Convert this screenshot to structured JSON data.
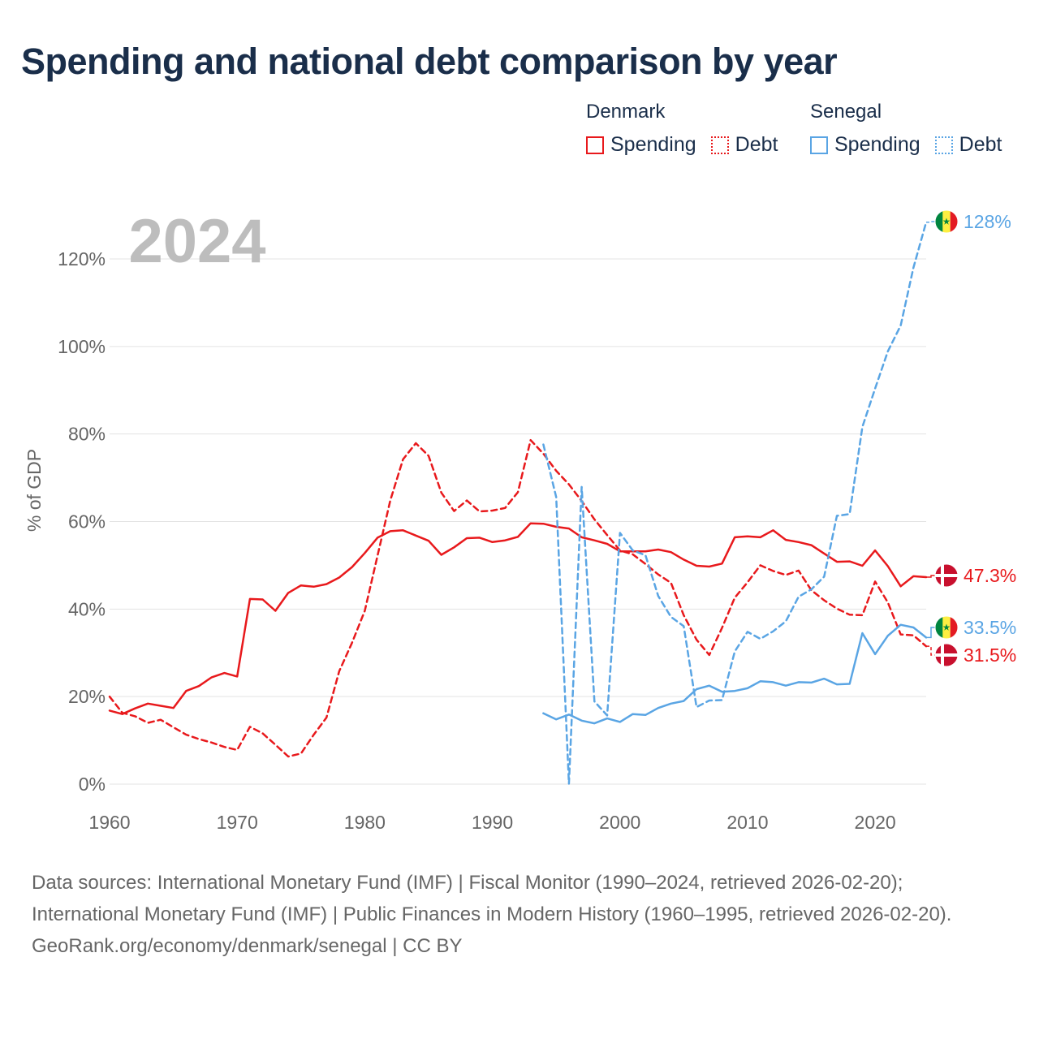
{
  "title": "Spending and national debt comparison by year",
  "legend": [
    {
      "country": "Denmark",
      "color": "#e8191c",
      "items": [
        {
          "label": "Spending",
          "style": "solid"
        },
        {
          "label": "Debt",
          "style": "dotted"
        }
      ]
    },
    {
      "country": "Senegal",
      "color": "#5aa5e4",
      "items": [
        {
          "label": "Spending",
          "style": "solid"
        },
        {
          "label": "Debt",
          "style": "dotted"
        }
      ]
    }
  ],
  "chart_data": {
    "type": "line",
    "title": "Spending and national debt comparison by year",
    "year_label": "2024",
    "ylabel": "% of GDP",
    "xlabel": "",
    "xlim": [
      1960,
      2024
    ],
    "ylim": [
      0,
      130
    ],
    "x_ticks": [
      "1960",
      "1970",
      "1980",
      "1990",
      "2000",
      "2010",
      "2020"
    ],
    "y_ticks": [
      "0%",
      "20%",
      "40%",
      "60%",
      "80%",
      "100%",
      "120%"
    ],
    "grid": true,
    "series": [
      {
        "name": "Denmark Spending",
        "color": "#e8191c",
        "dash": "solid",
        "start_year": 1960,
        "values": [
          16.8,
          16.0,
          17.3,
          18.4,
          17.9,
          17.4,
          21.3,
          22.4,
          24.4,
          25.4,
          24.6,
          42.3,
          42.2,
          39.6,
          43.7,
          45.4,
          45.1,
          45.7,
          47.2,
          49.6,
          52.8,
          56.3,
          57.8,
          58.0,
          56.8,
          55.6,
          52.4,
          54.1,
          56.2,
          56.3,
          55.3,
          55.7,
          56.5,
          59.6,
          59.5,
          58.8,
          58.4,
          56.4,
          55.7,
          54.9,
          53.2,
          53.2,
          53.2,
          53.6,
          53.0,
          51.3,
          49.9,
          49.7,
          50.4,
          56.4,
          56.6,
          56.4,
          58.0,
          55.8,
          55.3,
          54.6,
          52.7,
          50.8,
          50.9,
          49.9,
          53.4,
          49.8,
          45.2,
          47.5,
          47.3
        ],
        "end_label": "47.3%"
      },
      {
        "name": "Denmark Debt",
        "color": "#e8191c",
        "dash": "dashed",
        "start_year": 1960,
        "values": [
          20.0,
          16.3,
          15.5,
          14.0,
          14.7,
          13.0,
          11.3,
          10.3,
          9.5,
          8.5,
          7.8,
          13.1,
          11.6,
          9.0,
          6.3,
          7.0,
          11.3,
          15.2,
          25.8,
          32.3,
          39.6,
          52.2,
          64.8,
          74.2,
          77.9,
          75.0,
          66.6,
          62.4,
          64.8,
          62.3,
          62.5,
          63.1,
          66.7,
          78.6,
          75.5,
          71.6,
          68.5,
          64.7,
          60.5,
          56.9,
          53.4,
          52.5,
          50.3,
          47.9,
          46.0,
          38.6,
          33.0,
          29.5,
          35.7,
          42.6,
          46.1,
          50.0,
          48.7,
          47.8,
          48.8,
          44.3,
          42.0,
          40.1,
          38.7,
          38.6,
          46.3,
          41.5,
          34.2,
          34.0,
          31.5
        ],
        "end_label": "31.5%"
      },
      {
        "name": "Senegal Spending",
        "color": "#5aa5e4",
        "dash": "solid",
        "start_year": 1994,
        "values": [
          16.2,
          14.8,
          15.9,
          14.5,
          13.9,
          15.0,
          14.2,
          16.0,
          15.8,
          17.4,
          18.4,
          19.0,
          21.7,
          22.5,
          21.1,
          21.3,
          21.9,
          23.5,
          23.3,
          22.5,
          23.3,
          23.2,
          24.1,
          22.8,
          22.9,
          34.5,
          29.7,
          33.9,
          36.4,
          35.8,
          33.5
        ],
        "end_label": "33.5%"
      },
      {
        "name": "Senegal Debt",
        "color": "#5aa5e4",
        "dash": "dashed",
        "start_year": 1994,
        "values": [
          77.6,
          65.6,
          0.1,
          67.9,
          18.9,
          15.7,
          57.4,
          53.4,
          52.3,
          43.0,
          38.2,
          36.1,
          17.6,
          19.1,
          19.2,
          30.3,
          34.8,
          33.2,
          34.9,
          37.2,
          42.8,
          44.5,
          47.4,
          61.3,
          61.7,
          81.6,
          90.4,
          98.9,
          104.8,
          118.0,
          128.4
        ],
        "end_label": "128%"
      }
    ]
  },
  "footer": {
    "sources": "Data sources: International Monetary Fund (IMF) | Fiscal Monitor (1990–2024, retrieved 2026-02-20); International Monetary Fund (IMF) | Public Finances in Modern History (1960–1995, retrieved 2026-02-20).",
    "credit": "GeoRank.org/economy/denmark/senegal | CC BY"
  }
}
